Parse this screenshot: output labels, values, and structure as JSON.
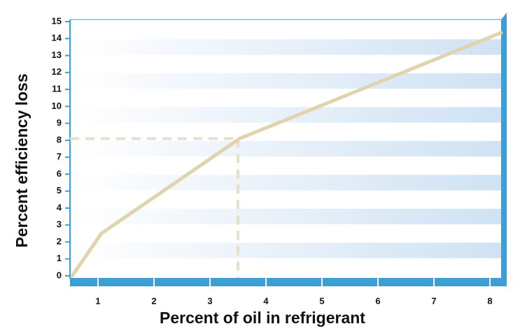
{
  "chart_data": {
    "type": "line",
    "x_label": "Percent of oil in refrigerant",
    "y_label": "Percent efficiency loss",
    "series": [
      {
        "color": "#e0d3ad",
        "x": [
          0.54,
          1.06,
          3.53,
          8.2
        ],
        "values": [
          0,
          2.5,
          8.1,
          14.35
        ]
      }
    ],
    "guide": {
      "x": 3.5,
      "y": 8.1,
      "color": "#e6dfcc"
    },
    "xlim": [
      0.5,
      8.225
    ],
    "ylim": [
      0,
      15
    ],
    "xticks": [
      1,
      2,
      3,
      4,
      5,
      6,
      7,
      8
    ],
    "yticks": [
      0,
      1,
      2,
      3,
      4,
      5,
      6,
      7,
      8,
      9,
      10,
      11,
      12,
      13,
      14,
      15
    ],
    "frame_color": "#3d9fd6",
    "band_color": "#cfe2f3"
  }
}
